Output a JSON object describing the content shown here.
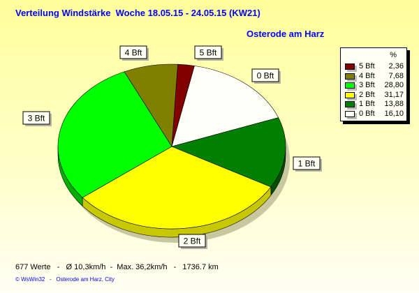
{
  "title": "Verteilung Windstärke  Woche 18.05.15 - 24.05.15 (KW21)",
  "subtitle": "Osterode am Harz",
  "stats": "677 Werte   -   Ø 10,3km/h  -  Max. 36,2km/h   -   1736.7 km",
  "credit": "© WsWin32   -   Osterode am Harz, City",
  "chart_data": {
    "type": "pie",
    "title": "Verteilung Windstärke  Woche 18.05.15 - 24.05.15 (KW21)",
    "legend_header": "%",
    "legend_placement": "right",
    "slices": [
      {
        "label": "5 Bft",
        "value": 2.36,
        "display": "2,36",
        "color": "#800000",
        "side": "#500000"
      },
      {
        "label": "4 Bft",
        "value": 7.68,
        "display": "7,68",
        "color": "#808000",
        "side": "#505000"
      },
      {
        "label": "3 Bft",
        "value": 28.8,
        "display": "28,80",
        "color": "#00ff00",
        "side": "#00b000"
      },
      {
        "label": "2 Bft",
        "value": 31.17,
        "display": "31,17",
        "color": "#ffff00",
        "side": "#c8c800"
      },
      {
        "label": "1 Bft",
        "value": 13.88,
        "display": "13,88",
        "color": "#008000",
        "side": "#005000"
      },
      {
        "label": "0 Bft",
        "value": 16.1,
        "display": "16,10",
        "color": "#fffff8",
        "side": "#c8c8c0"
      }
    ]
  }
}
